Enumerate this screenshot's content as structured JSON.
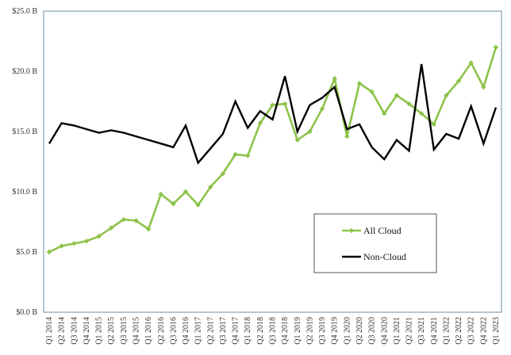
{
  "chart_data": {
    "type": "line",
    "title": "",
    "xlabel": "",
    "ylabel": "",
    "ylim": [
      0,
      25
    ],
    "y_ticks": [
      "$0.0 B",
      "$5.0 B",
      "$10.0 B",
      "$15.0 B",
      "$20.0 B",
      "$25.0 B"
    ],
    "y_tick_values": [
      0,
      5,
      10,
      15,
      20,
      25
    ],
    "y_unit": "B",
    "grid": false,
    "legend_position": "lower-right inside plot",
    "categories": [
      "Q1 2014",
      "Q2 2014",
      "Q3 2014",
      "Q4 2014",
      "Q1 2015",
      "Q2 2015",
      "Q3 2015",
      "Q4 2015",
      "Q1 2016",
      "Q2 2016",
      "Q3 2016",
      "Q4 2016",
      "Q1 2017",
      "Q2 2017",
      "Q3 2017",
      "Q4 2017",
      "Q1 2018",
      "Q2 2018",
      "Q3 2018",
      "Q4 2018",
      "Q1 2019",
      "Q2 2019",
      "Q3 2019",
      "Q4 2019",
      "Q1 2020",
      "Q2 2020",
      "Q3 2020",
      "Q4 2020",
      "Q1 2021",
      "Q2 2021",
      "Q3 2021",
      "Q4 2021",
      "Q1 2022",
      "Q2 2022",
      "Q3 2022",
      "Q4 2022",
      "Q1 2023"
    ],
    "series": [
      {
        "name": "All Cloud",
        "color": "#8dc34a",
        "marker": "diamond",
        "values": [
          5.0,
          5.5,
          5.7,
          5.9,
          6.3,
          7.0,
          7.7,
          7.6,
          6.9,
          9.8,
          9.0,
          10.0,
          8.9,
          10.4,
          11.5,
          13.1,
          13.0,
          15.7,
          17.2,
          17.3,
          14.3,
          15.0,
          16.9,
          19.4,
          14.6,
          19.0,
          18.3,
          16.5,
          18.0,
          17.3,
          16.5,
          15.6,
          18.0,
          19.2,
          20.7,
          18.7,
          22.0
        ]
      },
      {
        "name": "Non-Cloud",
        "color": "#000000",
        "marker": "none",
        "values": [
          14.0,
          15.7,
          15.5,
          15.2,
          14.9,
          15.1,
          14.9,
          14.6,
          14.3,
          14.0,
          13.7,
          15.5,
          12.4,
          13.6,
          14.8,
          17.5,
          15.3,
          16.7,
          16.0,
          19.6,
          15.0,
          17.2,
          17.8,
          18.7,
          15.2,
          15.6,
          13.7,
          12.7,
          14.3,
          13.4,
          20.6,
          13.5,
          14.8,
          14.4,
          17.1,
          14.0,
          17.0
        ]
      }
    ],
    "legend": {
      "entries": [
        "All Cloud",
        "Non-Cloud"
      ]
    }
  }
}
